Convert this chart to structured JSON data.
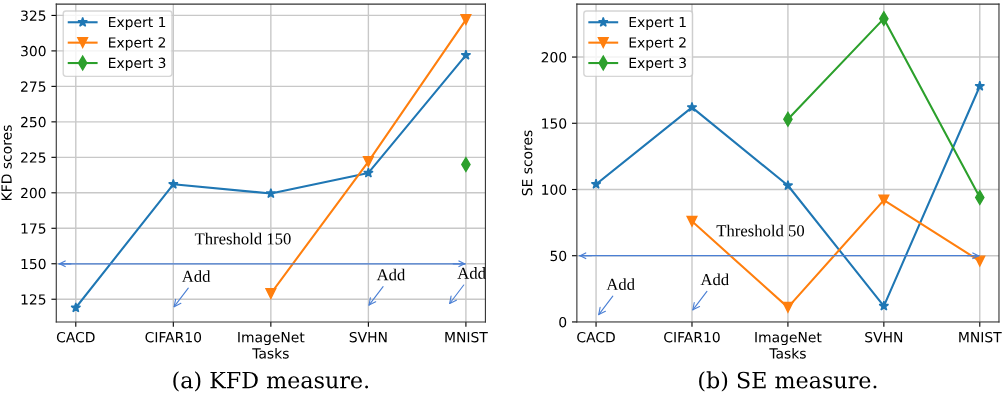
{
  "chart_data": [
    {
      "type": "line",
      "title": "(a) KFD measure.",
      "xlabel": "Tasks",
      "ylabel": "KFD scores",
      "categories": [
        "CACD",
        "CIFAR10",
        "ImageNet",
        "SVHN",
        "MNIST"
      ],
      "series": [
        {
          "name": "Expert 1",
          "color": "#1f77b4",
          "marker": "star",
          "values": [
            119,
            206,
            199.5,
            214,
            297
          ]
        },
        {
          "name": "Expert 2",
          "color": "#ff7f0e",
          "marker": "triangle",
          "values": [
            null,
            null,
            129,
            222,
            322
          ]
        },
        {
          "name": "Expert 3",
          "color": "#2ca02c",
          "marker": "diamond",
          "values": [
            null,
            null,
            null,
            null,
            220
          ]
        }
      ],
      "ylim": [
        109,
        333
      ],
      "yticks": [
        125,
        150,
        175,
        200,
        225,
        250,
        275,
        300,
        325
      ],
      "ref_lines": [
        {
          "axis": "y",
          "value": 150,
          "label": "Threshold 150",
          "color": "#4a7fd4"
        }
      ],
      "annotations": [
        "Add",
        "Add",
        "Add"
      ],
      "grid": true,
      "legend": "top left",
      "line_style": "solid"
    },
    {
      "type": "line",
      "title": "(b) SE measure.",
      "xlabel": "Tasks",
      "ylabel": "SE scores",
      "categories": [
        "CACD",
        "CIFAR10",
        "ImageNet",
        "SVHN",
        "MNIST"
      ],
      "series": [
        {
          "name": "Expert 1",
          "color": "#1f77b4",
          "marker": "star",
          "values": [
            104,
            162,
            103,
            12,
            178
          ]
        },
        {
          "name": "Expert 2",
          "color": "#ff7f0e",
          "marker": "triangle",
          "values": [
            null,
            76,
            11,
            92,
            46
          ]
        },
        {
          "name": "Expert 3",
          "color": "#2ca02c",
          "marker": "diamond",
          "values": [
            null,
            null,
            153,
            229,
            94
          ]
        }
      ],
      "ylim": [
        0,
        240
      ],
      "yticks": [
        0,
        50,
        100,
        150,
        200
      ],
      "ref_lines": [
        {
          "axis": "y",
          "value": 50,
          "label": "Threshold 50",
          "color": "#4a7fd4"
        }
      ],
      "annotations": [
        "Add",
        "Add"
      ],
      "grid": true,
      "legend": "top left",
      "line_style": "solid"
    }
  ]
}
